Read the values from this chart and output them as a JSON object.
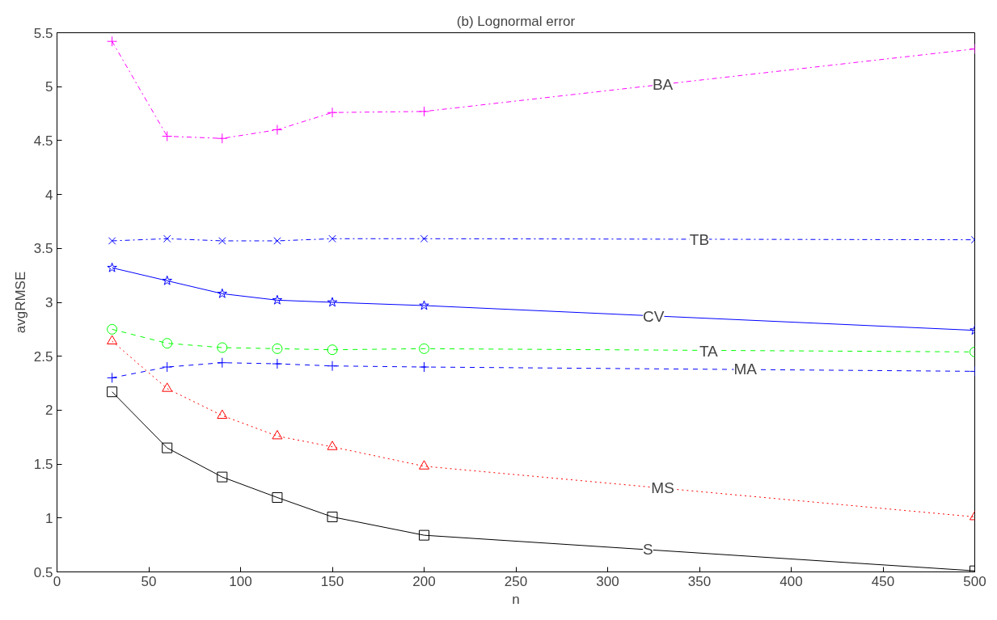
{
  "chart_data": {
    "type": "line",
    "title": "(b) Lognormal error",
    "xlabel": "n",
    "ylabel": "avgRMSE",
    "x": [
      30,
      60,
      90,
      120,
      150,
      200,
      500
    ],
    "xlim": [
      0,
      500
    ],
    "xticks": [
      0,
      50,
      100,
      150,
      200,
      250,
      300,
      350,
      400,
      450,
      500
    ],
    "ylim": [
      0.5,
      5.5
    ],
    "yticks": [
      0.5,
      1,
      1.5,
      2,
      2.5,
      3,
      3.5,
      4,
      4.5,
      5,
      5.5
    ],
    "grid": false,
    "series": [
      {
        "color": "#ff00ff",
        "marker": "cross",
        "line_style": "dashdot",
        "values": [
          5.42,
          4.54,
          4.52,
          4.6,
          4.76,
          4.77,
          5.35
        ]
      },
      {
        "color": "#0000ff",
        "marker": "x",
        "line_style": "dashdot",
        "values": [
          3.57,
          3.59,
          3.57,
          3.57,
          3.59,
          3.59,
          3.58
        ]
      },
      {
        "color": "#0000ff",
        "marker": "star",
        "line_style": "solid",
        "values": [
          3.32,
          3.2,
          3.08,
          3.02,
          3.0,
          2.97,
          2.74
        ]
      },
      {
        "color": "#00ff00",
        "marker": "circle",
        "line_style": "dashed",
        "values": [
          2.75,
          2.62,
          2.58,
          2.57,
          2.56,
          2.57,
          2.54
        ]
      },
      {
        "color": "#0000ff",
        "marker": "cross",
        "line_style": "dashed",
        "values": [
          2.3,
          2.4,
          2.44,
          2.43,
          2.41,
          2.4,
          2.36
        ]
      },
      {
        "color": "#ff0000",
        "marker": "triangle",
        "line_style": "dotted",
        "values": [
          2.64,
          2.2,
          1.95,
          1.76,
          1.66,
          1.48,
          1.01
        ]
      },
      {
        "color": "#000000",
        "marker": "square",
        "line_style": "solid",
        "values": [
          2.17,
          1.65,
          1.38,
          1.19,
          1.01,
          0.84,
          0.51
        ]
      }
    ],
    "annotations": [
      {
        "text": "BA",
        "x": 330,
        "y": 5.02
      },
      {
        "text": "TB",
        "x": 350,
        "y": 3.58
      },
      {
        "text": "CV",
        "x": 325,
        "y": 2.87
      },
      {
        "text": "TA",
        "x": 355,
        "y": 2.55
      },
      {
        "text": "MA",
        "x": 375,
        "y": 2.38
      },
      {
        "text": "MS",
        "x": 330,
        "y": 1.28
      },
      {
        "text": "S",
        "x": 322,
        "y": 0.71
      }
    ]
  }
}
